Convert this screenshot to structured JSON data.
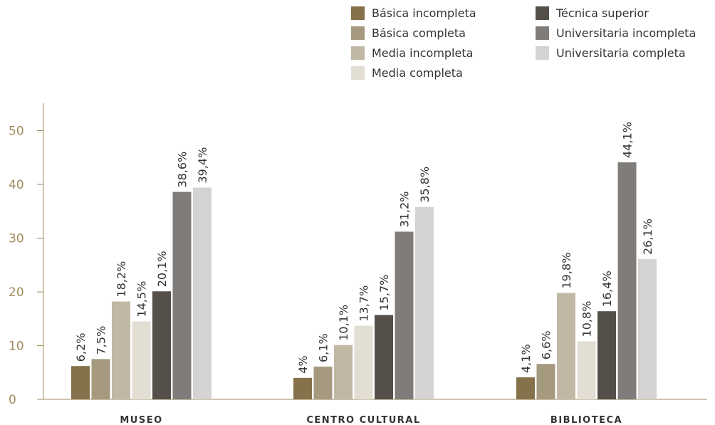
{
  "chart_data": {
    "type": "bar",
    "categories": [
      "MUSEO",
      "CENTRO CULTURAL",
      "BIBLIOTECA"
    ],
    "series": [
      {
        "name": "Básica incompleta",
        "color": "#85724b",
        "values": [
          6.2,
          4,
          4.1
        ],
        "labels": [
          "6,2%",
          "4%",
          "4,1%"
        ]
      },
      {
        "name": "Básica completa",
        "color": "#a59a7f",
        "values": [
          7.5,
          6.1,
          6.6
        ],
        "labels": [
          "7,5%",
          "6,1%",
          "6,6%"
        ]
      },
      {
        "name": "Media incompleta",
        "color": "#c1b7a5",
        "values": [
          18.2,
          10.1,
          19.8
        ],
        "labels": [
          "18,2%",
          "10,1%",
          "19,8%"
        ]
      },
      {
        "name": "Media completa",
        "color": "#e3ded3",
        "values": [
          14.5,
          13.7,
          10.8
        ],
        "labels": [
          "14,5%",
          "13,7%",
          "10,8%"
        ]
      },
      {
        "name": "Técnica superior",
        "color": "#545049",
        "values": [
          20.1,
          15.7,
          16.4
        ],
        "labels": [
          "20,1%",
          "15,7%",
          "16,4%"
        ]
      },
      {
        "name": "Universitaria incompleta",
        "color": "#7f7c79",
        "values": [
          38.6,
          31.2,
          44.1
        ],
        "labels": [
          "38,6%",
          "31,2%",
          "44,1%"
        ]
      },
      {
        "name": "Universitaria completa",
        "color": "#d4d3d2",
        "values": [
          39.4,
          35.8,
          26.1
        ],
        "labels": [
          "39,4%",
          "35,8%",
          "26,1%"
        ]
      }
    ],
    "ylim": [
      0,
      50
    ],
    "yticks": [
      0,
      10,
      20,
      30,
      40,
      50
    ],
    "title": "",
    "xlabel": "",
    "ylabel": "",
    "grid": false,
    "legend_position": "top-right"
  }
}
